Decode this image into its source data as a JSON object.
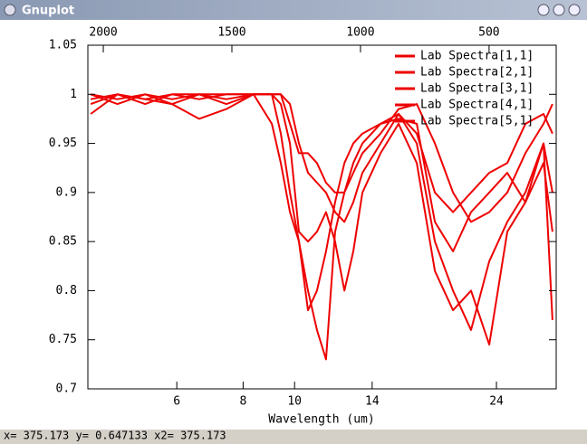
{
  "window": {
    "title": "Gnuplot",
    "status": "x= 375.173 y= 0.647133 x2= 375.173"
  },
  "chart_data": {
    "type": "line",
    "xlabel": "Wavelength (um)",
    "xlog": true,
    "xlim": [
      4.08,
      31.1
    ],
    "xticks": [
      6,
      8,
      10,
      14,
      24
    ],
    "x2lim": [
      2060,
      239
    ],
    "x2ticks": [
      2000,
      1500,
      1000,
      500
    ],
    "ylim": [
      0.7,
      1.05
    ],
    "yticks": [
      0.7,
      0.75,
      0.8,
      0.85,
      0.9,
      0.95,
      1,
      1.05
    ],
    "legend": "top-right",
    "x": [
      4.13,
      4.64,
      5.23,
      5.88,
      6.61,
      7.44,
      8.37,
      9.06,
      9.42,
      9.8,
      10.19,
      10.6,
      11.02,
      11.46,
      11.92,
      12.41,
      12.9,
      13.42,
      14.52,
      15.7,
      16.99,
      18.38,
      19.88,
      21.5,
      23.26,
      25.16,
      27.21,
      29.44,
      30.6
    ],
    "series": [
      {
        "name": "Lab Spectra[1,1]",
        "color": "#ee0000",
        "values": [
          0.99,
          1.0,
          0.995,
          1.0,
          0.995,
          1.0,
          1.0,
          0.97,
          0.93,
          0.88,
          0.85,
          0.8,
          0.76,
          0.73,
          0.86,
          0.9,
          0.93,
          0.95,
          0.97,
          0.975,
          0.97,
          0.87,
          0.84,
          0.88,
          0.9,
          0.92,
          0.89,
          0.93,
          0.86
        ]
      },
      {
        "name": "Lab Spectra[2,1]",
        "color": "#ee0000",
        "values": [
          1.0,
          0.995,
          1.0,
          0.99,
          0.975,
          0.985,
          1.0,
          1.0,
          0.96,
          0.9,
          0.85,
          0.78,
          0.8,
          0.84,
          0.89,
          0.93,
          0.95,
          0.96,
          0.97,
          0.98,
          0.95,
          0.85,
          0.8,
          0.76,
          0.83,
          0.87,
          0.9,
          0.95,
          0.9
        ]
      },
      {
        "name": "Lab Spectra[3,1]",
        "color": "#ee0000",
        "values": [
          0.995,
          1.0,
          0.99,
          1.0,
          1.0,
          0.99,
          1.0,
          1.0,
          0.99,
          0.95,
          0.86,
          0.85,
          0.86,
          0.88,
          0.85,
          0.8,
          0.84,
          0.9,
          0.94,
          0.97,
          0.93,
          0.82,
          0.78,
          0.8,
          0.745,
          0.86,
          0.89,
          0.95,
          0.77
        ]
      },
      {
        "name": "Lab Spectra[4,1]",
        "color": "#ee0000",
        "values": [
          1.0,
          0.99,
          1.0,
          0.995,
          1.0,
          1.0,
          1.0,
          1.0,
          1.0,
          0.99,
          0.95,
          0.92,
          0.91,
          0.9,
          0.88,
          0.87,
          0.89,
          0.92,
          0.95,
          0.98,
          0.96,
          0.9,
          0.88,
          0.9,
          0.92,
          0.93,
          0.97,
          0.98,
          0.96
        ]
      },
      {
        "name": "Lab Spectra[5,1]",
        "color": "#ee0000",
        "values": [
          0.98,
          1.0,
          0.995,
          0.99,
          1.0,
          0.995,
          1.0,
          1.0,
          1.0,
          0.97,
          0.94,
          0.94,
          0.93,
          0.91,
          0.9,
          0.9,
          0.92,
          0.94,
          0.96,
          0.985,
          0.99,
          0.95,
          0.9,
          0.87,
          0.88,
          0.9,
          0.94,
          0.97,
          0.99
        ]
      }
    ]
  }
}
